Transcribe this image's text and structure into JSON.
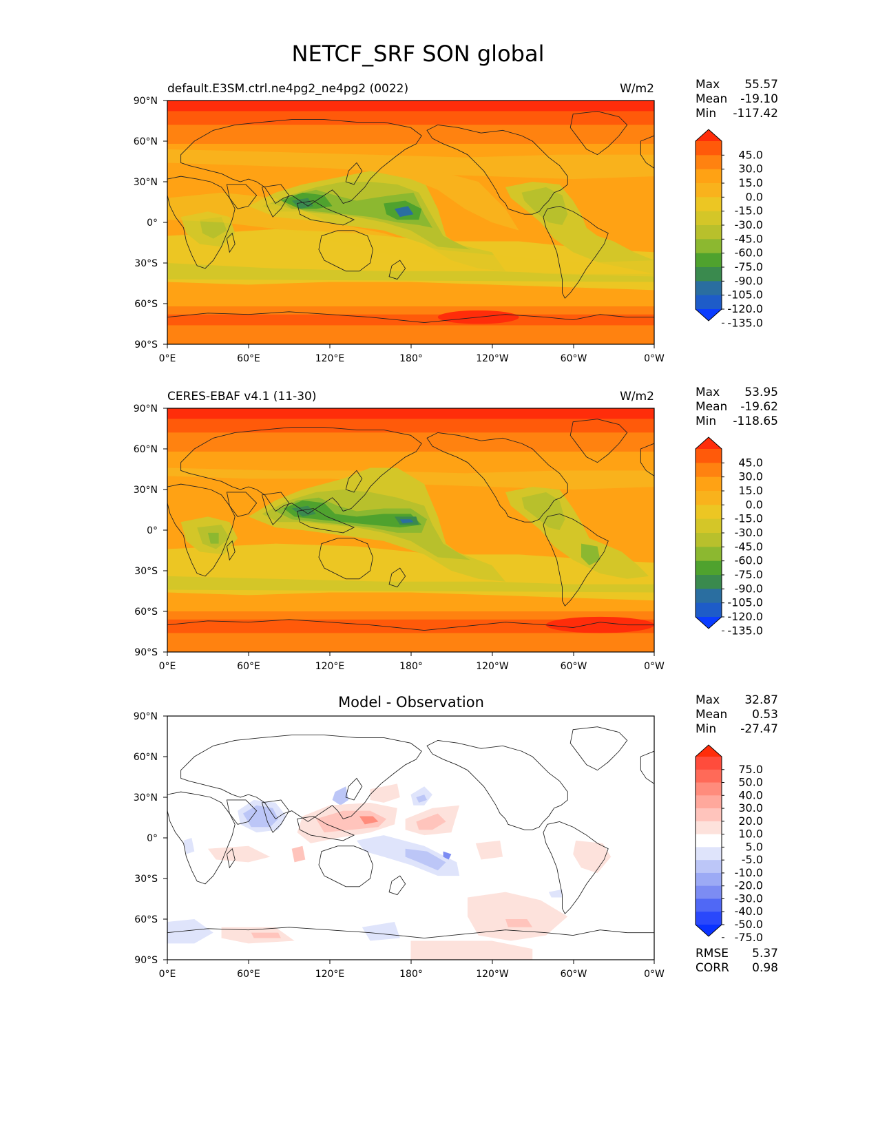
{
  "figure": {
    "title": "NETCF_SRF SON global"
  },
  "axes": {
    "lat_ticks": [
      "90°N",
      "60°N",
      "30°N",
      "0°",
      "30°S",
      "60°S",
      "90°S"
    ],
    "lon_ticks": [
      "0°E",
      "60°E",
      "120°E",
      "180°",
      "120°W",
      "60°W",
      "0°W"
    ],
    "lat_range": [
      -90,
      90
    ],
    "lon_range": [
      0,
      360
    ]
  },
  "panels": [
    {
      "title_left": "default.E3SM.ctrl.ne4pg2_ne4pg2 (0022)",
      "title_center": "",
      "units": "W/m2",
      "stats": [
        {
          "label": "Max",
          "value": "55.57"
        },
        {
          "label": "Mean",
          "value": "-19.10"
        },
        {
          "label": "Min",
          "value": "-117.42"
        }
      ],
      "colorbar_labels": [
        "45.0",
        "30.0",
        "15.0",
        "0.0",
        "-15.0",
        "-30.0",
        "-45.0",
        "-60.0",
        "-75.0",
        "-90.0",
        "-105.0",
        "-120.0",
        "-135.0"
      ],
      "colorbar_colors": [
        "#ff2d0a",
        "#ff5a0a",
        "#ff8210",
        "#ffa214",
        "#f9b21c",
        "#ecc623",
        "#d4c628",
        "#b8c02c",
        "#8cb830",
        "#4fa22e",
        "#3a8a4e",
        "#2a6ea0",
        "#1e5cc8",
        "#0a3cff"
      ]
    },
    {
      "title_left": "CERES-EBAF v4.1 (11-30)",
      "title_center": "",
      "units": "W/m2",
      "stats": [
        {
          "label": "Max",
          "value": "53.95"
        },
        {
          "label": "Mean",
          "value": "-19.62"
        },
        {
          "label": "Min",
          "value": "-118.65"
        }
      ],
      "colorbar_labels": [
        "45.0",
        "30.0",
        "15.0",
        "0.0",
        "-15.0",
        "-30.0",
        "-45.0",
        "-60.0",
        "-75.0",
        "-90.0",
        "-105.0",
        "-120.0",
        "-135.0"
      ],
      "colorbar_colors": [
        "#ff2d0a",
        "#ff5a0a",
        "#ff8210",
        "#ffa214",
        "#f9b21c",
        "#ecc623",
        "#d4c628",
        "#b8c02c",
        "#8cb830",
        "#4fa22e",
        "#3a8a4e",
        "#2a6ea0",
        "#1e5cc8",
        "#0a3cff"
      ]
    },
    {
      "title_left": "",
      "title_center": "Model - Observation",
      "units": "",
      "stats": [
        {
          "label": "Max",
          "value": "32.87"
        },
        {
          "label": "Mean",
          "value": "0.53"
        },
        {
          "label": "Min",
          "value": "-27.47"
        }
      ],
      "extra_stats": [
        {
          "label": "RMSE",
          "value": "5.37"
        },
        {
          "label": "CORR",
          "value": "0.98"
        }
      ],
      "colorbar_labels": [
        "75.0",
        "50.0",
        "40.0",
        "30.0",
        "20.0",
        "10.0",
        "5.0",
        "-5.0",
        "-10.0",
        "-20.0",
        "-30.0",
        "-40.0",
        "-50.0",
        "-75.0"
      ],
      "colorbar_colors": [
        "#ff2d0a",
        "#ff4c3c",
        "#ff6a58",
        "#ff8c7c",
        "#ffa89c",
        "#ffc4bc",
        "#fde2dc",
        "#ffffff",
        "#dfe4fb",
        "#bcc6f7",
        "#9caaf5",
        "#7c8cf3",
        "#5068f5",
        "#2a48fb",
        "#0a32ff"
      ]
    }
  ],
  "colors": {
    "coast": "#222222",
    "diff_background": "#ffffff"
  }
}
